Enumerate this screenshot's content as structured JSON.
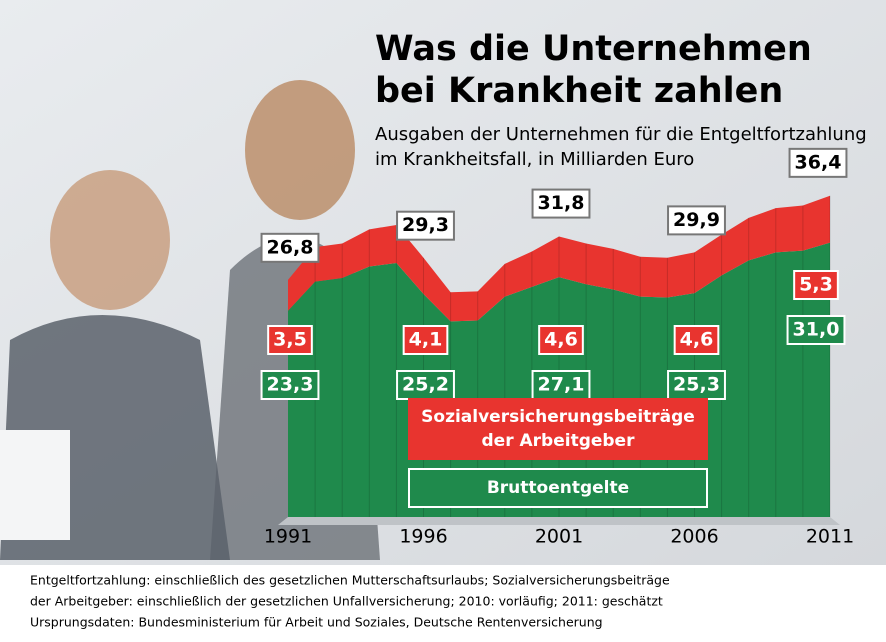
{
  "chart_data": {
    "type": "stacked-area",
    "title": "Was die Unternehmen bei Krankheit zahlen",
    "subtitle": "Ausgaben der Unternehmen für die Entgeltfortzahlung im Krankheitsfall, in Milliarden Euro",
    "x": [
      1991,
      1992,
      1993,
      1994,
      1995,
      1996,
      1997,
      1998,
      1999,
      2000,
      2001,
      2002,
      2003,
      2004,
      2005,
      2006,
      2007,
      2008,
      2009,
      2010,
      2011
    ],
    "xlim": [
      1991,
      2011
    ],
    "xticks": [
      1991,
      1996,
      2001,
      2006,
      2011
    ],
    "series": [
      {
        "name": "Bruttoentgelte",
        "color": "#1f8a4c",
        "values": [
          23.3,
          26.6,
          27.0,
          28.3,
          28.7,
          25.2,
          22.1,
          22.2,
          24.9,
          26.0,
          27.1,
          26.3,
          25.7,
          24.9,
          24.8,
          25.3,
          27.3,
          29.0,
          29.9,
          30.1,
          31.0
        ],
        "value_labels": [
          "23,3",
          null,
          null,
          null,
          null,
          "25,2",
          null,
          null,
          null,
          null,
          "27,1",
          null,
          null,
          null,
          null,
          "25,3",
          null,
          null,
          null,
          null,
          "31,0"
        ]
      },
      {
        "name": "Sozialversicherungsbeiträge der Arbeitgeber",
        "color": "#e8342f",
        "values": [
          3.5,
          3.9,
          3.9,
          4.2,
          4.3,
          4.1,
          3.3,
          3.3,
          3.7,
          4.0,
          4.6,
          4.6,
          4.6,
          4.5,
          4.5,
          4.6,
          4.6,
          4.8,
          5.0,
          5.1,
          5.3
        ],
        "value_labels": [
          "3,5",
          null,
          null,
          null,
          null,
          "4,1",
          null,
          null,
          null,
          null,
          "4,6",
          null,
          null,
          null,
          null,
          "4,6",
          null,
          null,
          null,
          null,
          "5,3"
        ]
      }
    ],
    "totals": [
      {
        "x": 1991,
        "value": 26.8,
        "label": "26,8"
      },
      {
        "x": 1996,
        "value": 29.3,
        "label": "29,3"
      },
      {
        "x": 2001,
        "value": 31.8,
        "label": "31,8"
      },
      {
        "x": 2006,
        "value": 29.9,
        "label": "29,9"
      },
      {
        "x": 2011,
        "value": 36.4,
        "label": "36,4"
      }
    ],
    "ylim": [
      0,
      40
    ],
    "notes": [
      "Entgeltfortzahlung: einschließlich des gesetzlichen Mutterschaftsurlaubs; Sozialversicherungsbeiträge",
      "der Arbeitgeber: einschließlich der gesetzlichen Unfallversicherung; 2010: vorläufig; 2011: geschätzt",
      "Ursprungsdaten: Bundesministerium für Arbeit und Soziales, Deutsche Rentenversicherung"
    ]
  }
}
